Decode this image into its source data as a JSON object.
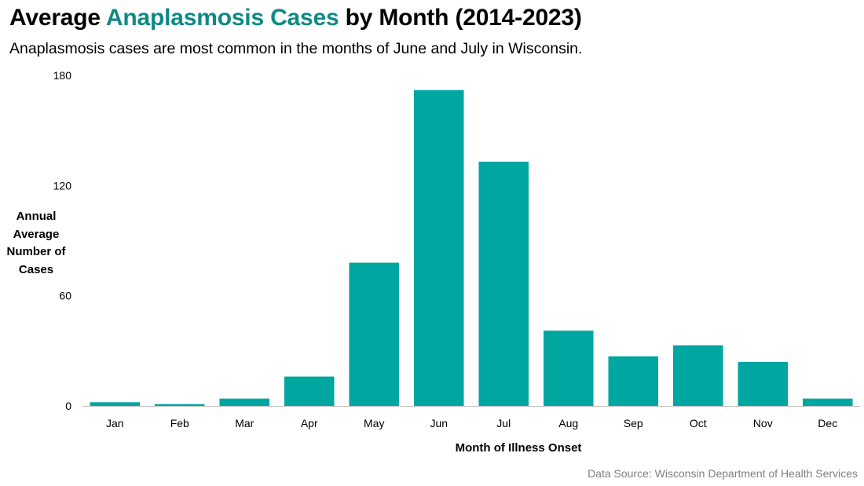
{
  "title": {
    "before": "Average ",
    "accent": "Anaplasmosis Cases",
    "after": " by Month (2014-2023)"
  },
  "subtitle": "Anaplasmosis cases are most common in the months of June and July in Wisconsin.",
  "source": "Data Source: Wisconsin Department of Health Services",
  "colors": {
    "bar": "#00a6a0",
    "accent_text": "#0e8a85",
    "axis": "#bfbfbf",
    "source_text": "#7f7f7f"
  },
  "chart_data": {
    "type": "bar",
    "title": "Average Anaplasmosis Cases by Month (2014-2023)",
    "xlabel": "Month of Illness Onset",
    "ylabel_lines": [
      "Annual",
      "Average",
      "Number of",
      "Cases"
    ],
    "ylabel": "Annual Average Number of Cases",
    "categories": [
      "Jan",
      "Feb",
      "Mar",
      "Apr",
      "May",
      "Jun",
      "Jul",
      "Aug",
      "Sep",
      "Oct",
      "Nov",
      "Dec"
    ],
    "values": [
      2,
      1,
      4,
      16,
      78,
      172,
      133,
      41,
      27,
      33,
      24,
      4
    ],
    "ylim": [
      0,
      180
    ],
    "yticks": [
      0,
      60,
      120,
      180
    ],
    "grid": false,
    "legend": "none"
  }
}
